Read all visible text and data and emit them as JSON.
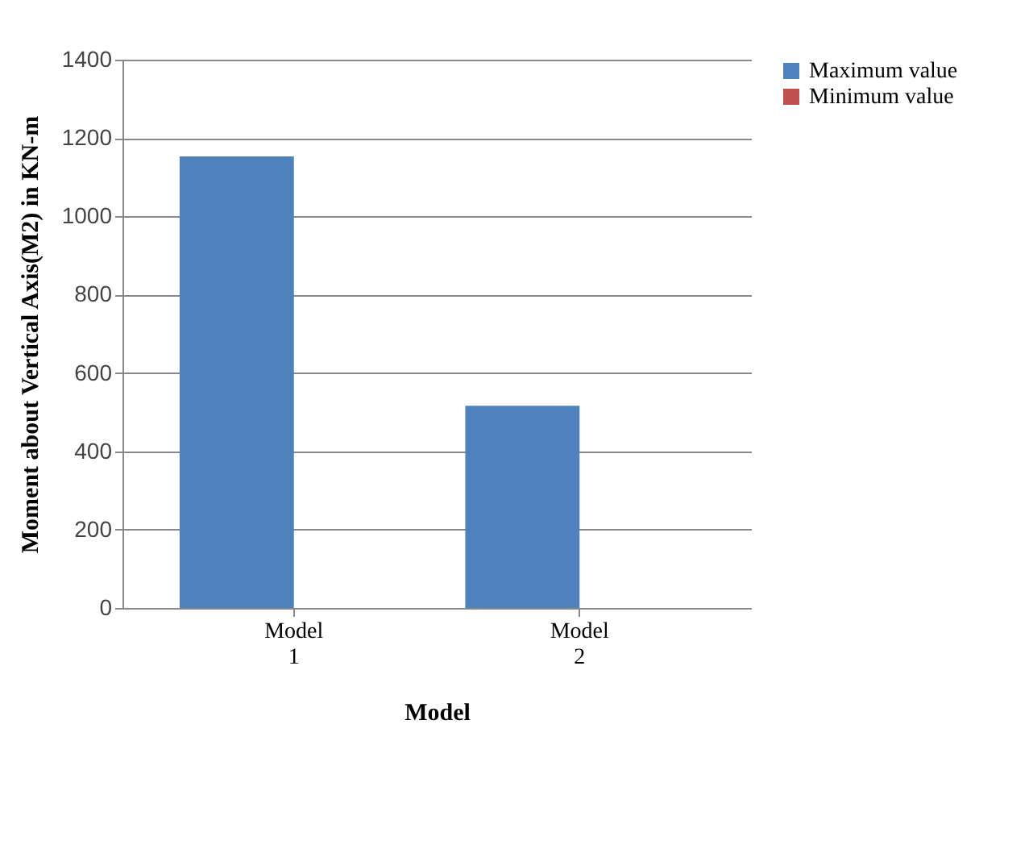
{
  "chart_data": {
    "type": "bar",
    "categories": [
      "Model 1",
      "Model 2"
    ],
    "series": [
      {
        "name": "Maximum value",
        "color": "#4f81bd",
        "values": [
          1153,
          516
        ]
      },
      {
        "name": "Minimum value",
        "color": "#c0504d",
        "values": [
          0,
          0
        ]
      }
    ],
    "xlabel": "Model",
    "ylabel": "Moment about Vertical Axis(M2) in KN-m",
    "ylim": [
      0,
      1400
    ],
    "yticks": [
      0,
      200,
      400,
      600,
      800,
      1000,
      1200,
      1400
    ],
    "grid": "y",
    "legend": "right"
  }
}
